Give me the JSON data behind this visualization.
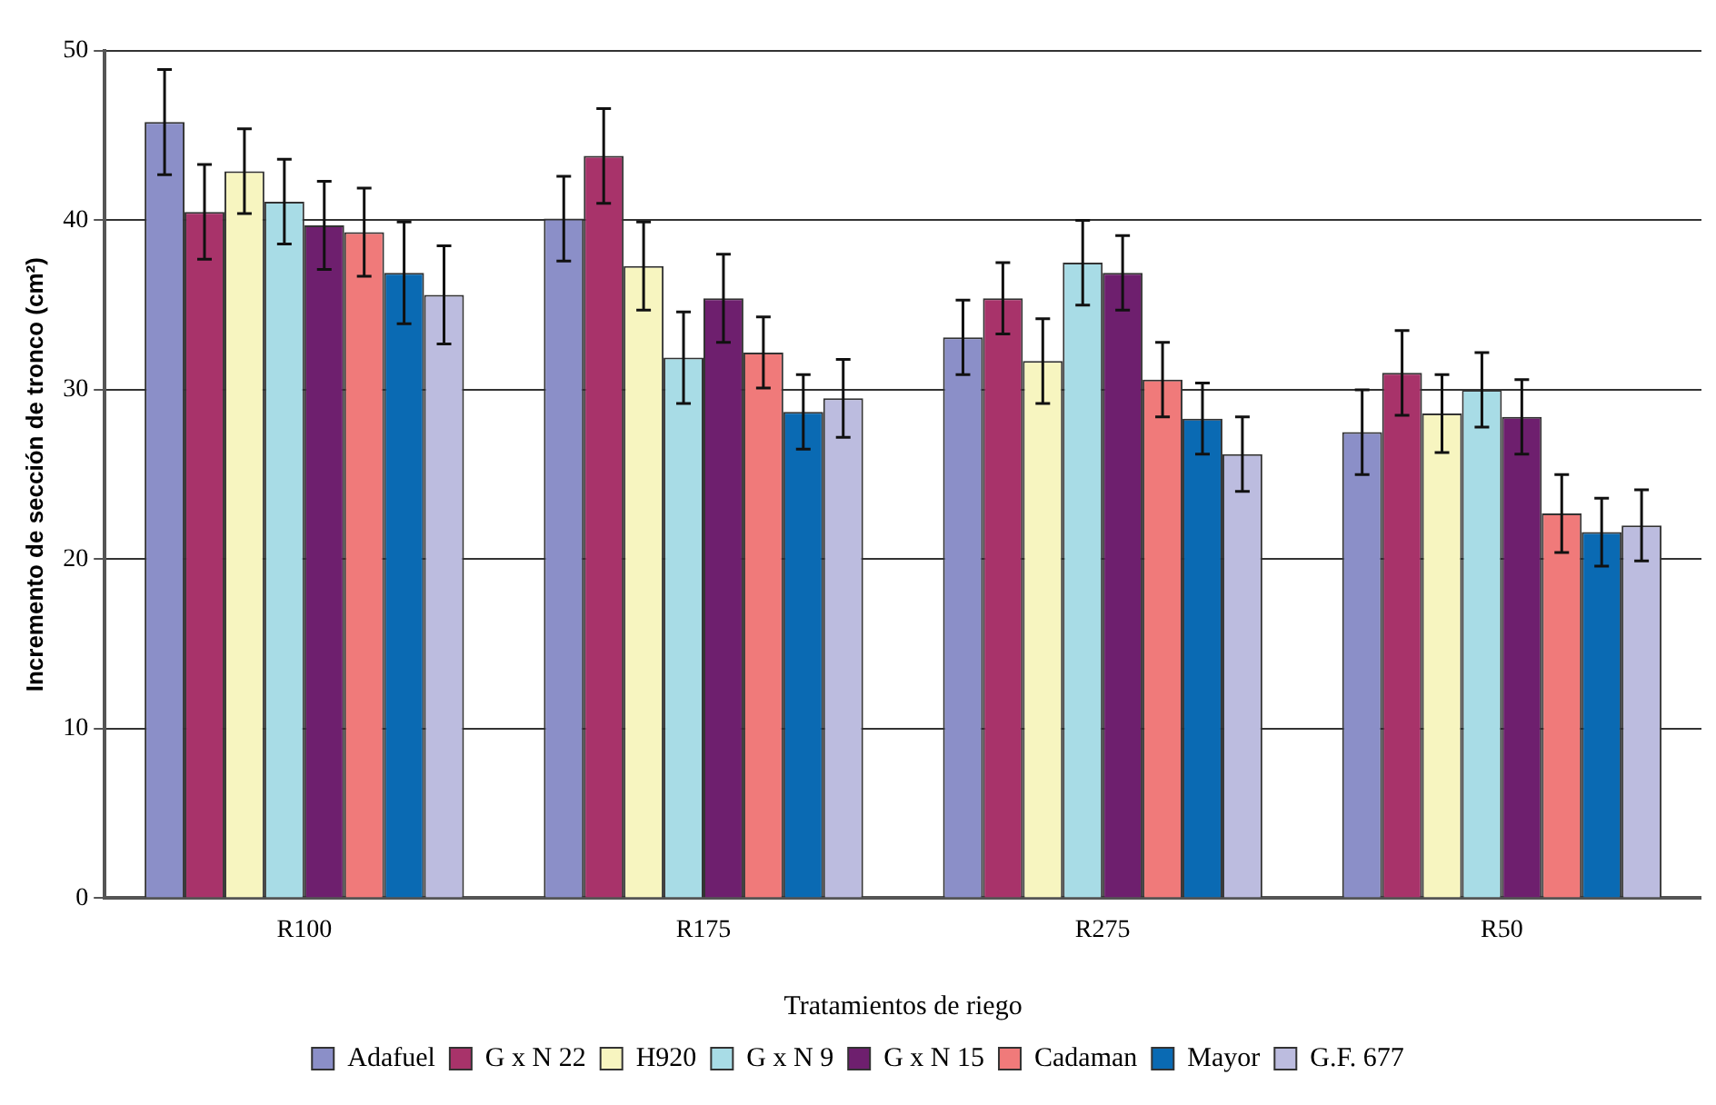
{
  "chart_data": {
    "type": "bar",
    "xlabel": "Tratamientos de riego",
    "ylabel": "Incremento de sección de tronco (cm²)",
    "categories": [
      "R100",
      "R175",
      "R275",
      "R50"
    ],
    "ylim": [
      0,
      50
    ],
    "yticks": [
      0,
      10,
      20,
      30,
      40,
      50
    ],
    "grid": "y",
    "legend": "bottom",
    "series": [
      {
        "name": "Adafuel",
        "color": "#8b8fc8",
        "values": [
          45.8,
          40.1,
          33.1,
          27.5
        ],
        "errors": [
          3.1,
          2.5,
          2.2,
          2.5
        ]
      },
      {
        "name": "G x N 22",
        "color": "#a8336a",
        "values": [
          40.5,
          43.8,
          35.4,
          31
        ],
        "errors": [
          2.8,
          2.8,
          2.1,
          2.5
        ]
      },
      {
        "name": "H920",
        "color": "#f7f5c0",
        "values": [
          42.9,
          37.3,
          31.7,
          28.6
        ],
        "errors": [
          2.5,
          2.6,
          2.5,
          2.3
        ]
      },
      {
        "name": "G x N 9",
        "color": "#a8dce6",
        "values": [
          41.1,
          31.9,
          37.5,
          30
        ],
        "errors": [
          2.5,
          2.7,
          2.5,
          2.2
        ]
      },
      {
        "name": "G x N 15",
        "color": "#6e1f6e",
        "values": [
          39.7,
          35.4,
          36.9,
          28.4
        ],
        "errors": [
          2.6,
          2.6,
          2.2,
          2.2
        ]
      },
      {
        "name": "Cadaman",
        "color": "#f07a7a",
        "values": [
          39.3,
          32.2,
          30.6,
          22.7
        ],
        "errors": [
          2.6,
          2.1,
          2.2,
          2.3
        ]
      },
      {
        "name": "Mayor",
        "color": "#0a6ab3",
        "values": [
          36.9,
          28.7,
          28.3,
          21.6
        ],
        "errors": [
          3,
          2.2,
          2.1,
          2
        ]
      },
      {
        "name": "G.F. 677",
        "color": "#bcbcdf",
        "values": [
          35.6,
          29.5,
          26.2,
          22
        ],
        "errors": [
          2.9,
          2.3,
          2.2,
          2.1
        ]
      }
    ]
  }
}
